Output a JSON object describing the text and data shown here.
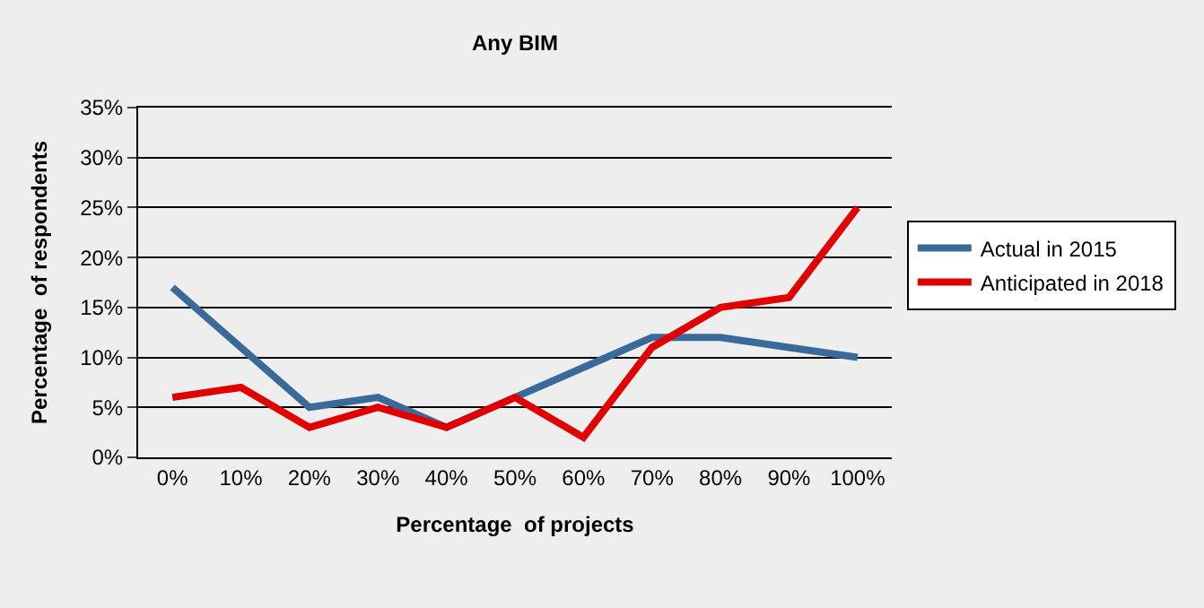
{
  "chart_data": {
    "type": "line",
    "title": "Any BIM",
    "xlabel": "Percentage  of projects",
    "ylabel": "Percentage  of respondents",
    "categories": [
      "0%",
      "10%",
      "20%",
      "30%",
      "40%",
      "50%",
      "60%",
      "70%",
      "80%",
      "90%",
      "100%"
    ],
    "series": [
      {
        "name": "Actual in 2015",
        "color": "#3a6a9a",
        "values": [
          17,
          11,
          5,
          6,
          3,
          6,
          9,
          12,
          12,
          11,
          10
        ]
      },
      {
        "name": "Anticipated in 2018",
        "color": "#e00000",
        "values": [
          6,
          7,
          3,
          5,
          3,
          6,
          2,
          11,
          15,
          16,
          25
        ]
      }
    ],
    "ylim": [
      0,
      35
    ],
    "yticks": [
      {
        "value": 0,
        "label": "0%"
      },
      {
        "value": 5,
        "label": "5%"
      },
      {
        "value": 10,
        "label": "10%"
      },
      {
        "value": 15,
        "label": "15%"
      },
      {
        "value": 20,
        "label": "20%"
      },
      {
        "value": 25,
        "label": "25%"
      },
      {
        "value": 30,
        "label": "30%"
      },
      {
        "value": 35,
        "label": "35%"
      }
    ],
    "grid": "y",
    "legend": "right",
    "marker": "none",
    "line_style": "solid"
  }
}
